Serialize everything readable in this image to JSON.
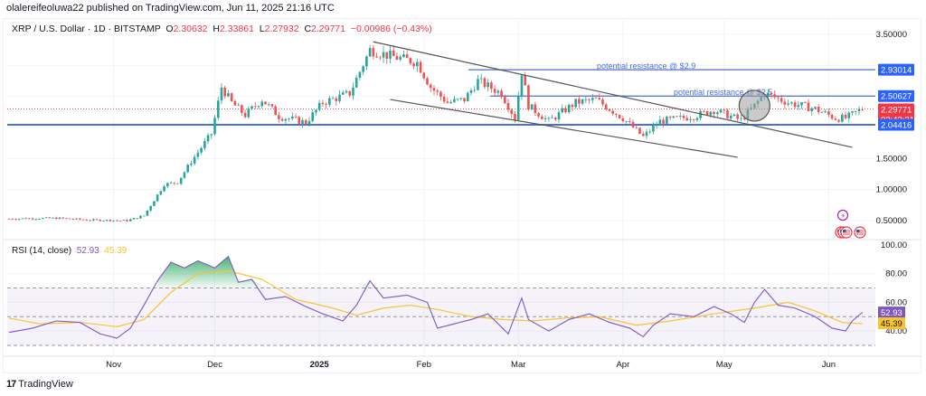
{
  "publisher_line": "olalereifeoluwa22 published on TradingView.com, Jun 11, 2025 21:16 UTC",
  "header": {
    "symbol": "XRP / U.S. Dollar · 1D · BITSTAMP",
    "open_label": "O",
    "open": "2.30632",
    "high_label": "H",
    "high": "2.33861",
    "low_label": "L",
    "low": "2.27932",
    "close_label": "C",
    "close": "2.29771",
    "change": "−0.00986 (−0.43%)"
  },
  "rsi_legend": {
    "label": "RSI (14, close)",
    "rsi_value": "52.93",
    "ma_value": "45.39"
  },
  "footer": {
    "brand": "TradingView",
    "logo": "17"
  },
  "colors": {
    "up": "#26a69a",
    "down": "#ef5350",
    "level_line": "#4a6fd8",
    "tag_blue": "#2962ff",
    "tag_red": "#f23645",
    "rsi_line": "#7e57c2",
    "rsi_ma": "#f7c52b",
    "trend_line": "#555555"
  },
  "chart_data": [
    {
      "type": "candlestick",
      "title": "XRP / U.S. Dollar · 1D · BITSTAMP",
      "y_axis": {
        "ticks": [
          "3.50000",
          "1.50000",
          "1.00000",
          "0.50000"
        ],
        "tick_values": [
          3.5,
          1.5,
          1.0,
          0.5
        ],
        "range": [
          0.42,
          3.62
        ]
      },
      "x_axis": {
        "ticks": [
          "Nov",
          "Dec",
          "2025",
          "Feb",
          "Mar",
          "Apr",
          "May",
          "Jun"
        ]
      },
      "price_tags": [
        {
          "value": "2.93014",
          "num": 2.93014,
          "color": "blue"
        },
        {
          "value": "2.50627",
          "num": 2.50627,
          "color": "blue"
        },
        {
          "value": "2.29771",
          "num": 2.29771,
          "color": "red",
          "sub": "02:43:21"
        },
        {
          "value": "2.04416",
          "num": 2.04416,
          "color": "blue"
        }
      ],
      "horizontal_levels": [
        {
          "price": 2.93014,
          "label": "potential resistance @ $2.9"
        },
        {
          "price": 2.50627,
          "label": "potential resistance @ $2.5"
        },
        {
          "price": 2.04416,
          "label": ""
        }
      ],
      "trend_lines": [
        {
          "name": "upper-channel",
          "from": [
            "2025-01-17",
            3.38
          ],
          "to": [
            "2025-06-08",
            1.68
          ]
        },
        {
          "name": "lower-channel",
          "from": [
            "2025-01-22",
            2.45
          ],
          "to": [
            "2025-05-05",
            1.52
          ]
        }
      ],
      "highlight_circle": {
        "date": "2025-05-10",
        "price": 2.35
      },
      "anchors": [
        [
          "2024-10-01",
          0.53
        ],
        [
          "2024-10-15",
          0.54
        ],
        [
          "2024-10-25",
          0.51
        ],
        [
          "2024-11-05",
          0.5
        ],
        [
          "2024-11-10",
          0.58
        ],
        [
          "2024-11-16",
          1.08
        ],
        [
          "2024-11-20",
          1.12
        ],
        [
          "2024-11-24",
          1.45
        ],
        [
          "2024-11-30",
          1.9
        ],
        [
          "2024-12-03",
          2.65
        ],
        [
          "2024-12-06",
          2.4
        ],
        [
          "2024-12-10",
          2.2
        ],
        [
          "2024-12-15",
          2.45
        ],
        [
          "2024-12-20",
          2.18
        ],
        [
          "2024-12-28",
          2.08
        ],
        [
          "2025-01-02",
          2.4
        ],
        [
          "2025-01-10",
          2.55
        ],
        [
          "2025-01-16",
          3.25
        ],
        [
          "2025-01-22",
          3.15
        ],
        [
          "2025-01-30",
          3.05
        ],
        [
          "2025-02-03",
          2.65
        ],
        [
          "2025-02-08",
          2.4
        ],
        [
          "2025-02-13",
          2.45
        ],
        [
          "2025-02-17",
          2.75
        ],
        [
          "2025-02-24",
          2.55
        ],
        [
          "2025-02-28",
          2.15
        ],
        [
          "2025-03-02",
          2.9
        ],
        [
          "2025-03-04",
          2.35
        ],
        [
          "2025-03-10",
          2.1
        ],
        [
          "2025-03-18",
          2.4
        ],
        [
          "2025-03-24",
          2.45
        ],
        [
          "2025-04-01",
          2.15
        ],
        [
          "2025-04-07",
          1.85
        ],
        [
          "2025-04-12",
          2.1
        ],
        [
          "2025-04-22",
          2.18
        ],
        [
          "2025-04-28",
          2.28
        ],
        [
          "2025-05-06",
          2.12
        ],
        [
          "2025-05-10",
          2.35
        ],
        [
          "2025-05-13",
          2.55
        ],
        [
          "2025-05-20",
          2.4
        ],
        [
          "2025-05-28",
          2.3
        ],
        [
          "2025-06-03",
          2.15
        ],
        [
          "2025-06-06",
          2.15
        ],
        [
          "2025-06-11",
          2.3
        ]
      ]
    },
    {
      "type": "line",
      "title": "RSI (14, close)",
      "y_axis": {
        "ticks": [
          "100.00",
          "80.00",
          "60.00",
          "40.00"
        ],
        "tick_values": [
          100,
          80,
          60,
          40
        ],
        "range": [
          25,
          100
        ]
      },
      "bands": {
        "upper": 70,
        "middle": 50,
        "lower": 30
      },
      "value_tags": [
        {
          "value": "52.93",
          "series": "RSI"
        },
        {
          "value": "45.39",
          "series": "MA"
        }
      ],
      "series": [
        {
          "name": "RSI",
          "points": [
            [
              "2024-10-01",
              39
            ],
            [
              "2024-10-08",
              42
            ],
            [
              "2024-10-15",
              47
            ],
            [
              "2024-10-22",
              46
            ],
            [
              "2024-10-28",
              38
            ],
            [
              "2024-11-02",
              35
            ],
            [
              "2024-11-06",
              42
            ],
            [
              "2024-11-10",
              58
            ],
            [
              "2024-11-14",
              75
            ],
            [
              "2024-11-18",
              88
            ],
            [
              "2024-11-22",
              84
            ],
            [
              "2024-11-26",
              89
            ],
            [
              "2024-12-01",
              84
            ],
            [
              "2024-12-05",
              92
            ],
            [
              "2024-12-08",
              74
            ],
            [
              "2024-12-12",
              76
            ],
            [
              "2024-12-16",
              62
            ],
            [
              "2024-12-22",
              64
            ],
            [
              "2024-12-28",
              57
            ],
            [
              "2025-01-02",
              52
            ],
            [
              "2025-01-08",
              47
            ],
            [
              "2025-01-12",
              58
            ],
            [
              "2025-01-16",
              75
            ],
            [
              "2025-01-20",
              63
            ],
            [
              "2025-01-27",
              65
            ],
            [
              "2025-02-02",
              60
            ],
            [
              "2025-02-05",
              42
            ],
            [
              "2025-02-10",
              45
            ],
            [
              "2025-02-15",
              48
            ],
            [
              "2025-02-20",
              52
            ],
            [
              "2025-02-26",
              38
            ],
            [
              "2025-03-02",
              63
            ],
            [
              "2025-03-04",
              48
            ],
            [
              "2025-03-10",
              40
            ],
            [
              "2025-03-16",
              48
            ],
            [
              "2025-03-22",
              52
            ],
            [
              "2025-03-28",
              46
            ],
            [
              "2025-04-03",
              42
            ],
            [
              "2025-04-07",
              36
            ],
            [
              "2025-04-10",
              44
            ],
            [
              "2025-04-15",
              52
            ],
            [
              "2025-04-22",
              50
            ],
            [
              "2025-04-28",
              57
            ],
            [
              "2025-05-03",
              52
            ],
            [
              "2025-05-07",
              46
            ],
            [
              "2025-05-10",
              60
            ],
            [
              "2025-05-13",
              69
            ],
            [
              "2025-05-17",
              58
            ],
            [
              "2025-05-22",
              56
            ],
            [
              "2025-05-28",
              50
            ],
            [
              "2025-06-02",
              42
            ],
            [
              "2025-06-06",
              40
            ],
            [
              "2025-06-08",
              47
            ],
            [
              "2025-06-11",
              53
            ]
          ]
        },
        {
          "name": "RSI-based MA",
          "points": [
            [
              "2024-10-01",
              49
            ],
            [
              "2024-10-10",
              45
            ],
            [
              "2024-10-22",
              46
            ],
            [
              "2024-11-02",
              43
            ],
            [
              "2024-11-10",
              48
            ],
            [
              "2024-11-18",
              67
            ],
            [
              "2024-11-26",
              80
            ],
            [
              "2024-12-05",
              82
            ],
            [
              "2024-12-15",
              76
            ],
            [
              "2024-12-25",
              62
            ],
            [
              "2025-01-05",
              56
            ],
            [
              "2025-01-12",
              51
            ],
            [
              "2025-01-20",
              56
            ],
            [
              "2025-01-28",
              58
            ],
            [
              "2025-02-05",
              55
            ],
            [
              "2025-02-15",
              50
            ],
            [
              "2025-02-25",
              48
            ],
            [
              "2025-03-05",
              47
            ],
            [
              "2025-03-15",
              49
            ],
            [
              "2025-03-25",
              50
            ],
            [
              "2025-04-05",
              44
            ],
            [
              "2025-04-15",
              47
            ],
            [
              "2025-04-28",
              52
            ],
            [
              "2025-05-10",
              56
            ],
            [
              "2025-05-20",
              60
            ],
            [
              "2025-05-28",
              54
            ],
            [
              "2025-06-05",
              46
            ],
            [
              "2025-06-11",
              45
            ]
          ]
        }
      ],
      "overbought_fill": "green gradient above 70"
    }
  ]
}
